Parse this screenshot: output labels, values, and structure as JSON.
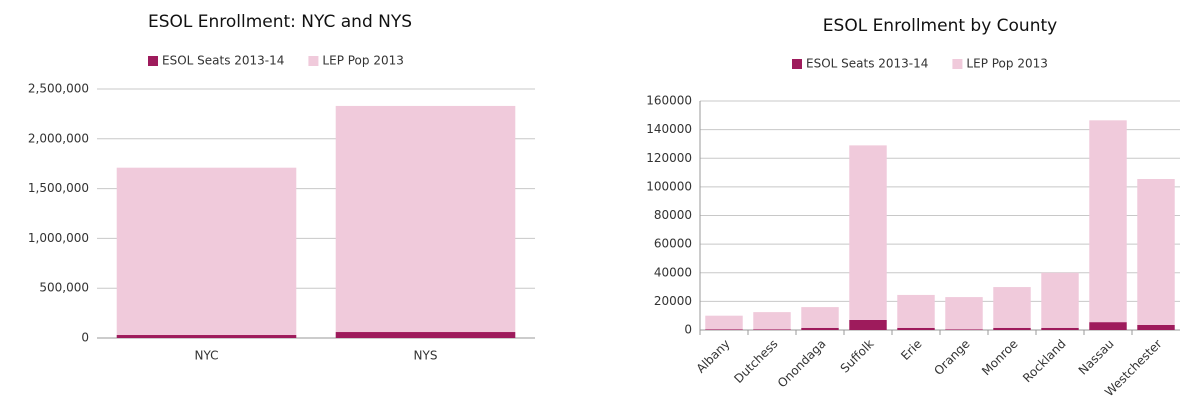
{
  "chart_data": [
    {
      "type": "stacked-bar",
      "title": "ESOL Enrollment: NYC and NYS",
      "categories": [
        "NYC",
        "NYS"
      ],
      "series": [
        {
          "name": "ESOL Seats 2013-14",
          "color": "#9e1b5c",
          "values": [
            30000,
            60000
          ]
        },
        {
          "name": "LEP Pop 2013",
          "color": "#f0cadb",
          "values": [
            1680000,
            2270000
          ]
        }
      ],
      "ylim": [
        0,
        2500000
      ],
      "yticks": [
        0,
        {
          "value": 500000,
          "label": "500,000"
        },
        {
          "value": 1000000,
          "label": "1,000,000"
        },
        {
          "value": 1500000,
          "label": "1,500,000"
        },
        {
          "value": 2000000,
          "label": "2,000,000"
        },
        {
          "value": 2500000,
          "label": "2,500,000"
        }
      ],
      "grid": true,
      "legend": "top"
    },
    {
      "type": "stacked-bar",
      "title": "ESOL Enrollment by County",
      "categories": [
        "Albany",
        "Dutchess",
        "Onondaga",
        "Suffolk",
        "Erie",
        "Orange",
        "Monroe",
        "Rockland",
        "Nassau",
        "Westchester"
      ],
      "series": [
        {
          "name": "ESOL Seats 2013-14",
          "color": "#9e1b5c",
          "values": [
            500,
            500,
            1500,
            7000,
            1500,
            500,
            1500,
            1500,
            5500,
            3500
          ]
        },
        {
          "name": "LEP Pop 2013",
          "color": "#f0cadb",
          "values": [
            9500,
            12000,
            14500,
            122000,
            23000,
            22500,
            28500,
            38500,
            141000,
            102000
          ]
        }
      ],
      "ylim": [
        0,
        160000
      ],
      "yticks": [
        0,
        20000,
        40000,
        60000,
        80000,
        100000,
        120000,
        140000,
        160000
      ],
      "grid": true,
      "legend": "top"
    }
  ]
}
